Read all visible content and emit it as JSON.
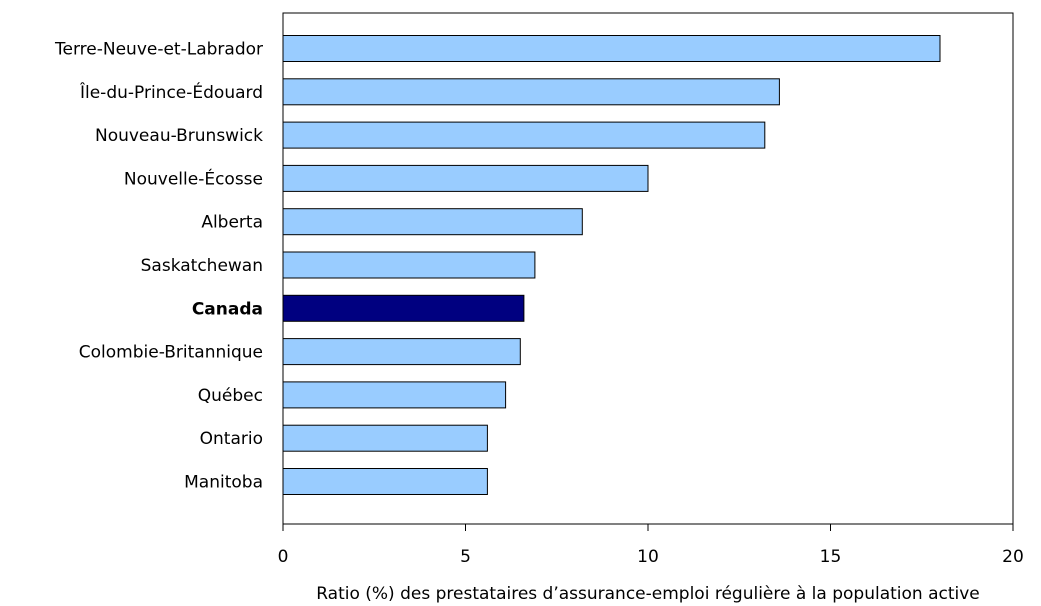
{
  "chart_data": {
    "type": "bar",
    "orientation": "horizontal",
    "title": "",
    "xlabel": "Ratio (%) des prestataires d’assurance-emploi régulière à la population active",
    "ylabel": "",
    "xlim": [
      0,
      20
    ],
    "xticks": [
      0,
      5,
      10,
      15,
      20
    ],
    "grid": false,
    "legend": "none",
    "categories": [
      "Terre-Neuve-et-Labrador",
      "Île-du-Prince-Édouard",
      "Nouveau-Brunswick",
      "Nouvelle-Écosse",
      "Alberta",
      "Saskatchewan",
      "Canada",
      "Colombie-Britannique",
      "Québec",
      "Ontario",
      "Manitoba"
    ],
    "values": [
      18.0,
      13.6,
      13.2,
      10.0,
      8.2,
      6.9,
      6.6,
      6.5,
      6.1,
      5.6,
      5.6
    ],
    "highlight_category": "Canada",
    "colors": {
      "bar": "#99ccff",
      "highlight": "#000080",
      "stroke": "#000000"
    }
  }
}
